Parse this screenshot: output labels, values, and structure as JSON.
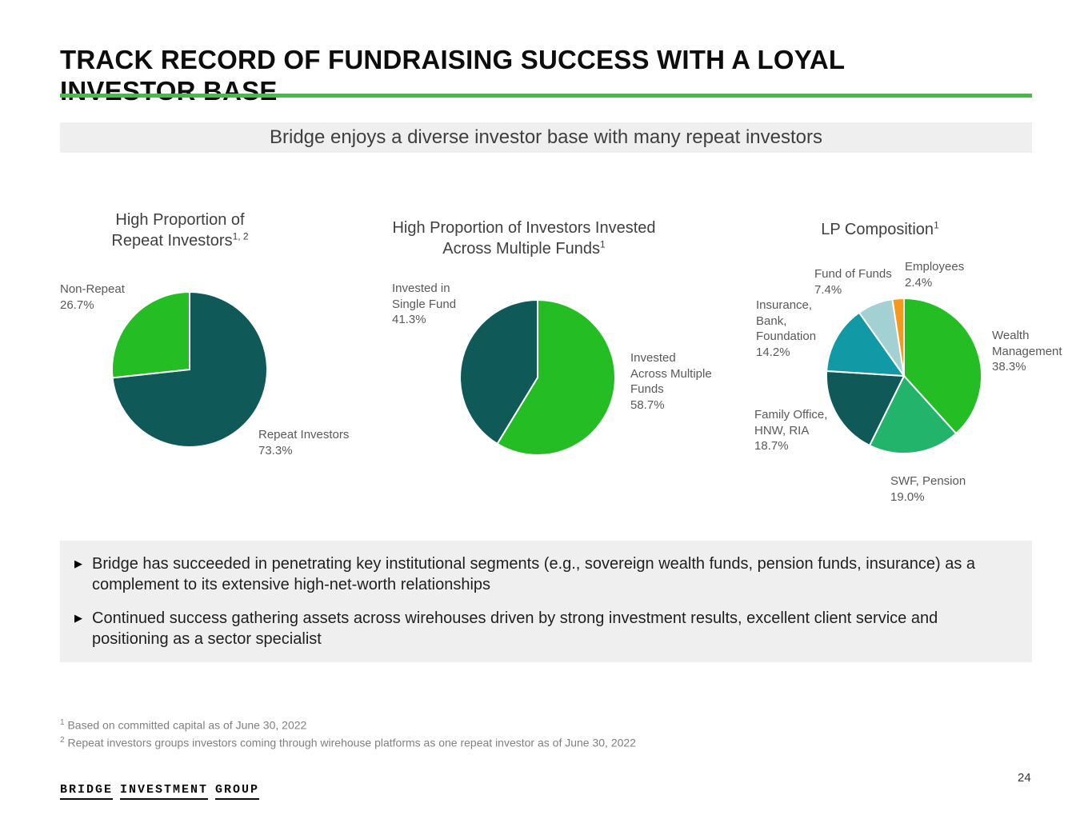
{
  "slide": {
    "title": "TRACK RECORD OF FUNDRAISING SUCCESS WITH A LOYAL INVESTOR BASE",
    "banner": "Bridge enjoys a diverse investor base with many repeat investors",
    "page_number": "24",
    "logo_words": [
      "BRIDGE",
      "INVESTMENT",
      "GROUP"
    ],
    "bullet_marker": "▶"
  },
  "bullets": [
    "Bridge has succeeded in penetrating key institutional segments (e.g., sovereign wealth funds, pension funds, insurance) as a complement to its extensive high-net-worth relationships",
    "Continued success gathering assets across wirehouses driven by strong investment results, excellent client service and positioning as a sector specialist"
  ],
  "footnotes": [
    {
      "sup": "1",
      "text": "Based on committed capital as of June 30, 2022"
    },
    {
      "sup": "2",
      "text": "Repeat investors groups investors coming through wirehouse platforms as one repeat investor as of June 30, 2022"
    }
  ],
  "colors": {
    "accent_green": "#3fc13f",
    "pie_green": "#24bd24",
    "pie_dark_teal": "#0f5a58",
    "pie_emerald": "#21b46a",
    "pie_teal": "#1199a6",
    "pie_pale_teal": "#a3d0d3",
    "pie_orange": "#f5991d"
  },
  "chart_data": [
    {
      "type": "pie",
      "title": "High Proportion of Repeat Investors",
      "title_sup": "1, 2",
      "legend_position": "around",
      "slices": [
        {
          "label": "Repeat Investors",
          "value": 73.3,
          "pct": "73.3%",
          "color": "#0f5a58"
        },
        {
          "label": "Non-Repeat",
          "value": 26.7,
          "pct": "26.7%",
          "color": "#24bd24"
        }
      ]
    },
    {
      "type": "pie",
      "title": "High Proportion of Investors Invested Across Multiple Funds",
      "title_sup": "1",
      "legend_position": "around",
      "slices": [
        {
          "label": "Invested Across Multiple Funds",
          "value": 58.7,
          "pct": "58.7%",
          "color": "#24bd24"
        },
        {
          "label": "Invested in Single Fund",
          "value": 41.3,
          "pct": "41.3%",
          "color": "#0f5a58"
        }
      ]
    },
    {
      "type": "pie",
      "title": "LP Composition",
      "title_sup": "1",
      "legend_position": "around",
      "slices": [
        {
          "label": "Wealth Management",
          "value": 38.3,
          "pct": "38.3%",
          "color": "#24bd24"
        },
        {
          "label": "SWF, Pension",
          "value": 19.0,
          "pct": "19.0%",
          "color": "#21b46a"
        },
        {
          "label": "Family Office, HNW, RIA",
          "value": 18.7,
          "pct": "18.7%",
          "color": "#0f5a58"
        },
        {
          "label": "Insurance, Bank, Foundation",
          "value": 14.2,
          "pct": "14.2%",
          "color": "#1199a6"
        },
        {
          "label": "Fund of Funds",
          "value": 7.4,
          "pct": "7.4%",
          "color": "#a3d0d3"
        },
        {
          "label": "Employees",
          "value": 2.4,
          "pct": "2.4%",
          "color": "#f5991d"
        }
      ]
    }
  ]
}
